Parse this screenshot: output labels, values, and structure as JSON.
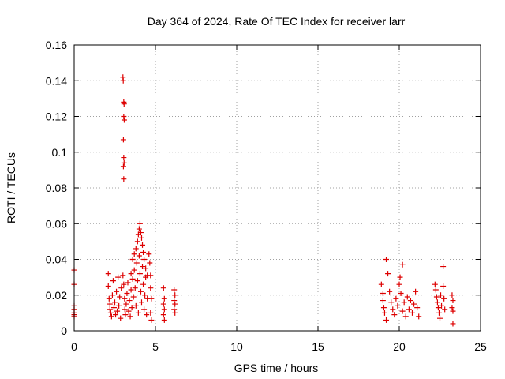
{
  "chart_data": {
    "type": "scatter",
    "title": "Day 364 of 2024, Rate Of TEC Index for receiver larr",
    "xlabel": "GPS time / hours",
    "ylabel": "ROTI / TECUs",
    "xlim": [
      0,
      25
    ],
    "ylim": [
      0,
      0.16
    ],
    "xticks": [
      0,
      5,
      10,
      15,
      20,
      25
    ],
    "xtick_labels": [
      "0",
      "5",
      "10",
      "15",
      "20",
      "25"
    ],
    "yticks": [
      0,
      0.02,
      0.04,
      0.06,
      0.08,
      0.1,
      0.12,
      0.14,
      0.16
    ],
    "ytick_labels": [
      "0",
      "0.02",
      "0.04",
      "0.06",
      "0.08",
      "0.1",
      "0.12",
      "0.14",
      "0.16"
    ],
    "grid": true,
    "marker": "+",
    "colors": {
      "series": "#dd0000",
      "grid": "#a0a0a0",
      "axis": "#000000"
    },
    "series": [
      {
        "name": "ROTI",
        "points": [
          [
            0.0,
            0.034
          ],
          [
            0.0,
            0.026
          ],
          [
            0.0,
            0.014
          ],
          [
            0.0,
            0.012
          ],
          [
            0.0,
            0.01
          ],
          [
            0.0,
            0.009
          ],
          [
            0.0,
            0.008
          ],
          [
            2.1,
            0.032
          ],
          [
            2.1,
            0.025
          ],
          [
            2.15,
            0.018
          ],
          [
            2.2,
            0.015
          ],
          [
            2.2,
            0.012
          ],
          [
            2.25,
            0.01
          ],
          [
            2.3,
            0.008
          ],
          [
            2.35,
            0.02
          ],
          [
            2.4,
            0.028
          ],
          [
            2.45,
            0.013
          ],
          [
            2.5,
            0.016
          ],
          [
            2.55,
            0.009
          ],
          [
            2.6,
            0.022
          ],
          [
            2.65,
            0.011
          ],
          [
            2.7,
            0.03
          ],
          [
            2.75,
            0.014
          ],
          [
            2.8,
            0.019
          ],
          [
            2.85,
            0.007
          ],
          [
            2.9,
            0.024
          ],
          [
            3.0,
            0.031
          ],
          [
            3.05,
            0.026
          ],
          [
            3.1,
            0.018
          ],
          [
            3.12,
            0.012
          ],
          [
            3.15,
            0.009
          ],
          [
            3.2,
            0.015
          ],
          [
            3.25,
            0.021
          ],
          [
            3.3,
            0.027
          ],
          [
            3.35,
            0.011
          ],
          [
            3.4,
            0.017
          ],
          [
            3.45,
            0.008
          ],
          [
            3.5,
            0.023
          ],
          [
            3.55,
            0.013
          ],
          [
            3.6,
            0.029
          ],
          [
            3.65,
            0.019
          ],
          [
            3.7,
            0.034
          ],
          [
            3.75,
            0.024
          ],
          [
            3.8,
            0.014
          ],
          [
            3.85,
            0.038
          ],
          [
            3.9,
            0.028
          ],
          [
            3.95,
            0.01
          ],
          [
            4.0,
            0.042
          ],
          [
            4.05,
            0.032
          ],
          [
            4.1,
            0.022
          ],
          [
            4.15,
            0.016
          ],
          [
            4.2,
            0.036
          ],
          [
            4.25,
            0.026
          ],
          [
            4.3,
            0.012
          ],
          [
            4.35,
            0.02
          ],
          [
            4.4,
            0.03
          ],
          [
            4.45,
            0.009
          ],
          [
            4.5,
            0.018
          ],
          [
            3.0,
            0.142
          ],
          [
            3.02,
            0.14
          ],
          [
            3.05,
            0.128
          ],
          [
            3.07,
            0.127
          ],
          [
            3.05,
            0.12
          ],
          [
            3.08,
            0.118
          ],
          [
            3.03,
            0.107
          ],
          [
            3.05,
            0.097
          ],
          [
            3.07,
            0.094
          ],
          [
            3.03,
            0.092
          ],
          [
            3.05,
            0.085
          ],
          [
            3.5,
            0.032
          ],
          [
            3.6,
            0.04
          ],
          [
            3.7,
            0.043
          ],
          [
            3.8,
            0.046
          ],
          [
            3.9,
            0.05
          ],
          [
            3.95,
            0.054
          ],
          [
            4.0,
            0.057
          ],
          [
            4.05,
            0.06
          ],
          [
            4.1,
            0.055
          ],
          [
            4.15,
            0.052
          ],
          [
            4.2,
            0.048
          ],
          [
            4.25,
            0.044
          ],
          [
            4.3,
            0.04
          ],
          [
            4.4,
            0.035
          ],
          [
            4.5,
            0.031
          ],
          [
            4.6,
            0.043
          ],
          [
            4.65,
            0.038
          ],
          [
            4.7,
            0.031
          ],
          [
            4.7,
            0.024
          ],
          [
            4.75,
            0.018
          ],
          [
            4.7,
            0.01
          ],
          [
            4.75,
            0.006
          ],
          [
            5.5,
            0.024
          ],
          [
            5.55,
            0.018
          ],
          [
            5.5,
            0.015
          ],
          [
            5.55,
            0.012
          ],
          [
            5.5,
            0.009
          ],
          [
            5.55,
            0.006
          ],
          [
            6.15,
            0.023
          ],
          [
            6.2,
            0.02
          ],
          [
            6.15,
            0.017
          ],
          [
            6.2,
            0.015
          ],
          [
            6.15,
            0.012
          ],
          [
            6.2,
            0.01
          ],
          [
            18.9,
            0.026
          ],
          [
            19.0,
            0.021
          ],
          [
            19.0,
            0.017
          ],
          [
            19.05,
            0.013
          ],
          [
            19.1,
            0.01
          ],
          [
            19.2,
            0.006
          ],
          [
            19.2,
            0.04
          ],
          [
            19.3,
            0.032
          ],
          [
            19.4,
            0.022
          ],
          [
            19.5,
            0.016
          ],
          [
            19.6,
            0.012
          ],
          [
            19.7,
            0.009
          ],
          [
            19.8,
            0.018
          ],
          [
            19.9,
            0.014
          ],
          [
            20.0,
            0.026
          ],
          [
            20.05,
            0.03
          ],
          [
            20.1,
            0.021
          ],
          [
            20.2,
            0.037
          ],
          [
            20.2,
            0.011
          ],
          [
            20.3,
            0.016
          ],
          [
            20.4,
            0.008
          ],
          [
            20.5,
            0.019
          ],
          [
            20.6,
            0.012
          ],
          [
            20.7,
            0.017
          ],
          [
            20.8,
            0.01
          ],
          [
            20.9,
            0.015
          ],
          [
            21.0,
            0.022
          ],
          [
            21.1,
            0.013
          ],
          [
            21.2,
            0.008
          ],
          [
            22.2,
            0.026
          ],
          [
            22.25,
            0.023
          ],
          [
            22.3,
            0.019
          ],
          [
            22.35,
            0.016
          ],
          [
            22.4,
            0.013
          ],
          [
            22.45,
            0.01
          ],
          [
            22.5,
            0.007
          ],
          [
            22.55,
            0.02
          ],
          [
            22.6,
            0.014
          ],
          [
            22.7,
            0.036
          ],
          [
            22.7,
            0.025
          ],
          [
            22.75,
            0.018
          ],
          [
            22.8,
            0.012
          ],
          [
            23.25,
            0.02
          ],
          [
            23.3,
            0.017
          ],
          [
            23.25,
            0.013
          ],
          [
            23.3,
            0.011
          ],
          [
            23.3,
            0.004
          ]
        ]
      }
    ]
  }
}
